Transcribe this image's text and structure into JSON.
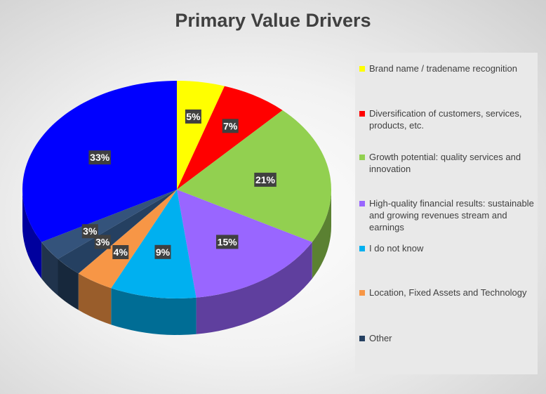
{
  "chart_data": {
    "type": "pie",
    "title": "Primary Value Drivers",
    "legend_position": "right",
    "slices": [
      {
        "name": "Brand name / tradename recognition",
        "value": 5,
        "label": "5%",
        "color": "#ffff00"
      },
      {
        "name": "Diversification of customers, services, products, etc.",
        "value": 7,
        "label": "7%",
        "color": "#ff0000"
      },
      {
        "name": "Growth potential: quality services and innovation",
        "value": 21,
        "label": "21%",
        "color": "#92d050"
      },
      {
        "name": "High-quality financial results: sustainable and growing revenues stream and earnings",
        "value": 15,
        "label": "15%",
        "color": "#9966ff"
      },
      {
        "name": "I do not know",
        "value": 9,
        "label": "9%",
        "color": "#00b0f0"
      },
      {
        "name": "Location, Fixed Assets and Technology",
        "value": 4,
        "label": "4%",
        "color": "#f79646"
      },
      {
        "name": "Other",
        "value": 3,
        "label": "3%",
        "color": "#254061"
      },
      {
        "name": "",
        "value": 3,
        "label": "3%",
        "color": "#34537b"
      },
      {
        "name": "",
        "value": 33,
        "label": "33%",
        "color": "#0000ff"
      }
    ]
  }
}
